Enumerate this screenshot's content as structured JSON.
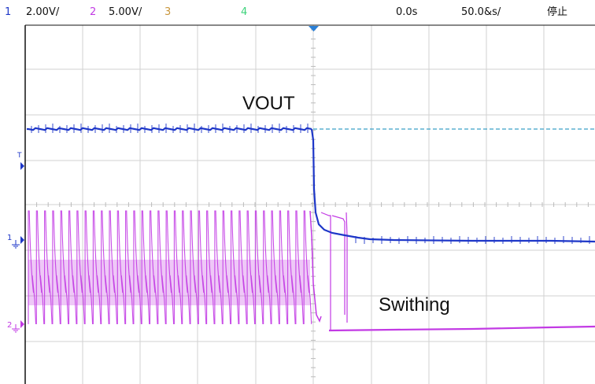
{
  "status_bar": {
    "ch1_number": "1",
    "ch1_scale": "2.00V/",
    "ch2_number": "2",
    "ch2_scale": "5.00V/",
    "ch3_number": "3",
    "ch4_number": "4",
    "time_offset": "0.0s",
    "time_scale": "50.0&s/",
    "run_state": "停止"
  },
  "colors": {
    "ch1": "#1e37c8",
    "ch2": "#c23ae4",
    "ch3": "#c8963c",
    "ch4": "#3cd27a",
    "reference": "#3aa0c8",
    "grid": "#d2d2d2"
  },
  "icons": {
    "trigger_marker": "down-triangle",
    "trigger_level_marker": "T-arrow",
    "ch1_ground_marker": "ground-arrow",
    "ch2_ground_marker": "ground-arrow"
  },
  "markers": {
    "trigger_label": "T",
    "ch1_label": "1",
    "ch2_label": "2"
  },
  "annotations": {
    "vout_label": "VOUT",
    "switching_label": "Swithing"
  }
}
